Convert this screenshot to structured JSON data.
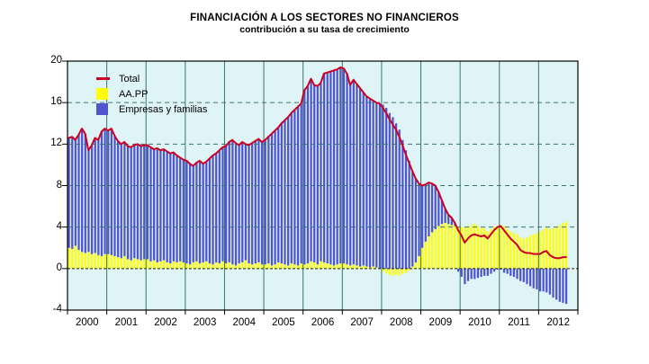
{
  "chart_data": {
    "type": "bar",
    "stacked": true,
    "title": "FINANCIACIÓN A LOS SECTORES NO FINANCIEROS",
    "subtitle": "contribución a su tasa de crecimiento",
    "x": {
      "frequency": "monthly",
      "start": "2000-01",
      "end": "2012-09",
      "axis_span_years": 13,
      "years": [
        "2000",
        "2001",
        "2002",
        "2003",
        "2004",
        "2005",
        "2006",
        "2007",
        "2008",
        "2009",
        "2010",
        "2011",
        "2012"
      ]
    },
    "ylim": [
      -4,
      20
    ],
    "yticks": [
      -4,
      0,
      4,
      8,
      12,
      16,
      20
    ],
    "grid": {
      "horizontal": "dashed",
      "vertical": "solid-at-year-boundaries"
    },
    "legend_position": "top-left-inside",
    "series": [
      {
        "name": "AA.PP",
        "type": "bar",
        "color": "#FFFF00",
        "values": [
          2.0,
          1.9,
          2.2,
          1.8,
          1.6,
          1.5,
          1.6,
          1.4,
          1.5,
          1.3,
          1.2,
          1.4,
          1.4,
          1.3,
          1.2,
          1.1,
          1.0,
          1.2,
          0.9,
          0.8,
          1.0,
          0.9,
          0.8,
          0.9,
          0.9,
          0.7,
          0.8,
          0.6,
          0.7,
          0.8,
          0.6,
          0.5,
          0.7,
          0.6,
          0.7,
          0.6,
          0.5,
          0.4,
          0.6,
          0.7,
          0.5,
          0.6,
          0.7,
          0.5,
          0.4,
          0.6,
          0.5,
          0.7,
          0.5,
          0.6,
          0.4,
          0.3,
          0.5,
          0.6,
          0.8,
          0.5,
          0.4,
          0.5,
          0.6,
          0.4,
          0.4,
          0.5,
          0.3,
          0.4,
          0.6,
          0.5,
          0.4,
          0.3,
          0.5,
          0.4,
          0.3,
          0.5,
          0.4,
          0.5,
          0.7,
          0.6,
          0.4,
          0.7,
          0.6,
          0.5,
          0.4,
          0.3,
          0.4,
          0.5,
          0.5,
          0.4,
          0.3,
          0.4,
          0.3,
          0.2,
          0.3,
          0.2,
          0.1,
          0.2,
          0.1,
          0.0,
          -0.3,
          -0.5,
          -0.6,
          -0.7,
          -0.6,
          -0.7,
          -0.5,
          -0.4,
          -0.2,
          0.2,
          0.6,
          1.2,
          2.0,
          2.6,
          3.1,
          3.5,
          3.8,
          4.1,
          4.3,
          4.4,
          4.3,
          4.2,
          4.1,
          4.0,
          4.0,
          4.0,
          4.1,
          4.2,
          4.3,
          4.1,
          3.9,
          3.9,
          3.6,
          3.8,
          4.0,
          4.1,
          4.2,
          4.1,
          3.8,
          3.6,
          3.4,
          3.3,
          3.0,
          2.9,
          3.0,
          3.2,
          3.3,
          3.4,
          3.6,
          3.8,
          4.0,
          3.8,
          3.9,
          4.0,
          4.2,
          4.4,
          4.5
        ]
      },
      {
        "name": "Empresas y familias",
        "type": "bar",
        "color": "#4F55CD",
        "values": [
          10.6,
          10.8,
          10.2,
          11.1,
          11.9,
          11.5,
          9.8,
          10.5,
          11.1,
          11.1,
          12.0,
          12.1,
          11.9,
          12.2,
          11.6,
          11.2,
          11.0,
          11.0,
          10.9,
          10.9,
          10.9,
          11.1,
          11.0,
          11.0,
          11.0,
          11.0,
          10.7,
          11.0,
          10.7,
          10.7,
          10.7,
          10.6,
          10.5,
          10.3,
          10.0,
          9.9,
          9.9,
          9.7,
          9.3,
          9.5,
          9.9,
          9.5,
          9.6,
          10.1,
          10.5,
          10.5,
          10.9,
          11.0,
          11.3,
          11.6,
          12.0,
          11.8,
          11.4,
          11.6,
          11.2,
          11.4,
          11.7,
          11.8,
          11.9,
          11.8,
          12.0,
          12.2,
          12.7,
          12.9,
          13.0,
          13.5,
          13.9,
          14.3,
          14.5,
          14.9,
          15.3,
          15.4,
          16.8,
          17.1,
          17.6,
          17.1,
          17.2,
          17.2,
          18.2,
          18.4,
          18.6,
          18.8,
          18.8,
          18.9,
          18.8,
          18.4,
          17.4,
          17.8,
          17.5,
          17.2,
          16.7,
          16.4,
          16.3,
          16.0,
          15.9,
          15.9,
          15.8,
          15.5,
          15.0,
          14.6,
          14.0,
          13.4,
          12.4,
          11.4,
          10.4,
          9.2,
          8.1,
          7.0,
          6.0,
          5.5,
          5.2,
          4.7,
          4.2,
          3.3,
          2.3,
          1.4,
          0.9,
          0.7,
          0.3,
          -0.3,
          -0.8,
          -1.5,
          -1.2,
          -1.0,
          -1.0,
          -0.9,
          -0.8,
          -0.7,
          -0.7,
          -0.5,
          -0.3,
          -0.1,
          -0.1,
          -0.4,
          -0.5,
          -0.7,
          -0.8,
          -1.0,
          -1.2,
          -1.3,
          -1.5,
          -1.7,
          -1.9,
          -2.0,
          -2.2,
          -2.2,
          -2.3,
          -2.5,
          -2.8,
          -3.0,
          -3.2,
          -3.3,
          -3.4
        ]
      },
      {
        "name": "Total",
        "type": "line",
        "color": "#CC0022",
        "derivation": "sum-of-bar-series"
      }
    ]
  },
  "legend": {
    "items": [
      {
        "label": "Total",
        "swatch": "line",
        "color": "#CC0022"
      },
      {
        "label": "AA.PP",
        "swatch": "square",
        "color": "#FFFF00"
      },
      {
        "label": "Empresas y familias",
        "swatch": "square",
        "color": "#4F55CD"
      }
    ]
  },
  "colors": {
    "page_bg": "#FFFFFF",
    "plot_bg": "#DFF4F6",
    "grid": "#3D7373",
    "zero_line": "#1A1A1A",
    "frame": "#000000",
    "bar_yellow": "#FFFF00",
    "bar_blue": "#4F55CD",
    "line_red": "#CC0022",
    "text": "#000000"
  }
}
